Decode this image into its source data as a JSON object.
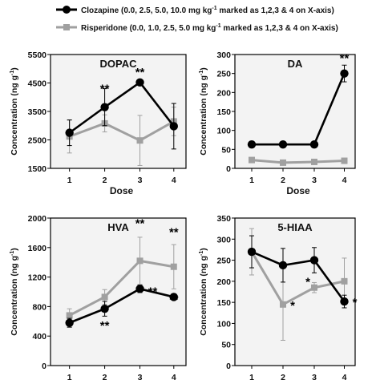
{
  "legend": {
    "entries": [
      {
        "label": "Clozapine",
        "desc": "(0.0, 2.5, 5.0, 10.0 mg kg",
        "sup": "-1",
        "tail": " marked as 1,2,3 & 4 on X-axis)"
      },
      {
        "label": "Risperidone",
        "desc": "(0.0, 1.0, 2.5, 5.0 mg kg",
        "sup": "-1",
        "tail": " marked as 1,2,3 & 4 on X-axis)"
      }
    ]
  },
  "colors": {
    "clozapine": "#000000",
    "risperidone": "#a0a0a0",
    "panel_bg": "#f3f3f3"
  },
  "chart_data": [
    {
      "type": "line",
      "title": "DOPAC",
      "xlabel": "Dose",
      "ylabel": "Concentration (ng g",
      "ylabel_sup": "-1",
      "ylabel_tail": ")",
      "x": [
        1,
        2,
        3,
        4
      ],
      "xticks": [
        "1",
        "2",
        "3",
        "4"
      ],
      "ylim": [
        1500,
        5500
      ],
      "yticks": [
        1500,
        2500,
        3500,
        4500,
        5500
      ],
      "series": [
        {
          "name": "Clozapine",
          "values": [
            2750,
            3650,
            4520,
            2980
          ],
          "errors": [
            450,
            650,
            100,
            800
          ],
          "annotations": [
            "",
            "**",
            "**",
            ""
          ]
        },
        {
          "name": "Risperidone",
          "values": [
            2620,
            3080,
            2480,
            3150
          ],
          "errors": [
            580,
            300,
            880,
            500
          ],
          "annotations": [
            "",
            "",
            "",
            ""
          ]
        }
      ]
    },
    {
      "type": "line",
      "title": "DA",
      "xlabel": "Dose",
      "ylabel": "Concentration (ng g",
      "ylabel_sup": "-1",
      "ylabel_tail": ")",
      "x": [
        1,
        2,
        3,
        4
      ],
      "xticks": [
        "1",
        "2",
        "3",
        "4"
      ],
      "ylim": [
        0,
        300
      ],
      "yticks": [
        0,
        50,
        100,
        150,
        200,
        250,
        300
      ],
      "series": [
        {
          "name": "Clozapine",
          "values": [
            63,
            63,
            63,
            250
          ],
          "errors": [
            8,
            4,
            4,
            22
          ],
          "annotations": [
            "",
            "",
            "",
            "**"
          ]
        },
        {
          "name": "Risperidone",
          "values": [
            22,
            15,
            17,
            20
          ],
          "errors": [
            3,
            2,
            2,
            3
          ],
          "annotations": [
            "",
            "",
            "",
            ""
          ]
        }
      ]
    },
    {
      "type": "line",
      "title": "HVA",
      "xlabel": "Dose",
      "ylabel": "Concentration (ng g",
      "ylabel_sup": "-1",
      "ylabel_tail": ")",
      "x": [
        1,
        2,
        3,
        4
      ],
      "xticks": [
        "1",
        "2",
        "3",
        "4"
      ],
      "ylim": [
        0,
        2000
      ],
      "yticks": [
        0,
        400,
        800,
        1200,
        1600,
        2000
      ],
      "series": [
        {
          "name": "Clozapine",
          "values": [
            580,
            770,
            1040,
            930
          ],
          "errors": [
            60,
            100,
            50,
            40
          ],
          "annotations": [
            "",
            "**",
            "**",
            "**"
          ]
        },
        {
          "name": "Risperidone",
          "values": [
            680,
            930,
            1420,
            1340
          ],
          "errors": [
            90,
            100,
            320,
            300
          ],
          "annotations": [
            "",
            "",
            "**",
            "**"
          ]
        }
      ]
    },
    {
      "type": "line",
      "title": "5-HIAA",
      "xlabel": "Dose",
      "ylabel": "Concentration (ng g",
      "ylabel_sup": "-1",
      "ylabel_tail": ")",
      "x": [
        1,
        2,
        3,
        4
      ],
      "xticks": [
        "1",
        "2",
        "3",
        "4"
      ],
      "ylim": [
        0,
        350
      ],
      "yticks": [
        0,
        50,
        100,
        150,
        200,
        250,
        300,
        350
      ],
      "series": [
        {
          "name": "Clozapine",
          "values": [
            270,
            238,
            250,
            152
          ],
          "errors": [
            38,
            40,
            30,
            15
          ],
          "annotations": [
            "",
            "",
            "",
            "*"
          ]
        },
        {
          "name": "Risperidone",
          "values": [
            270,
            145,
            185,
            200
          ],
          "errors": [
            55,
            85,
            12,
            55
          ],
          "annotations": [
            "",
            "*",
            "*",
            ""
          ]
        }
      ]
    }
  ]
}
